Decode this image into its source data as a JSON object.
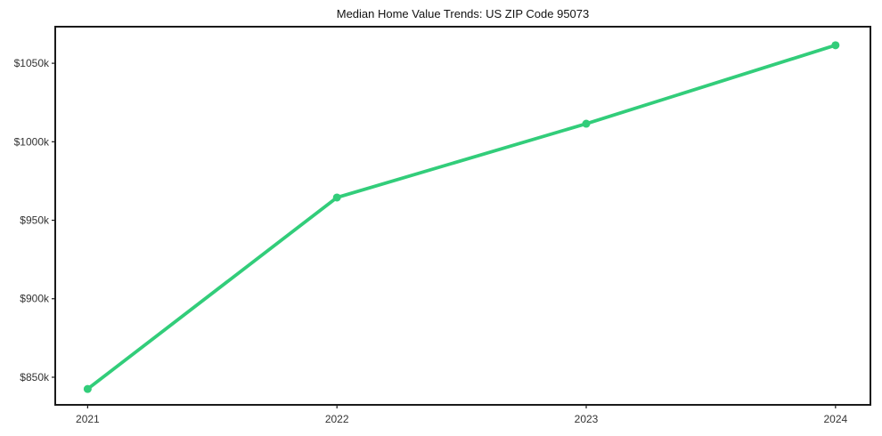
{
  "figure": {
    "background": "#ffffff"
  },
  "chart_data": {
    "type": "line",
    "title": "Median Home Value Trends: US ZIP Code 95073",
    "x": [
      2021,
      2022,
      2023,
      2024
    ],
    "x_tick_labels": [
      "2021",
      "2022",
      "2023",
      "2024"
    ],
    "values": [
      842.5,
      964.5,
      1011.5,
      1061.5
    ],
    "values_unit": "$k",
    "y_ticks": [
      850,
      900,
      950,
      1000,
      1050
    ],
    "y_tick_labels": [
      "$850k",
      "$900k",
      "$950k",
      "$1000k",
      "$1050k"
    ],
    "xlim": [
      2020.87,
      2024.14
    ],
    "ylim": [
      832.4,
      1073.3
    ],
    "grid": false,
    "legend": "none",
    "line_color": "#32cd7a",
    "marker": "circle",
    "axis_color": "#1a1a1a",
    "tick_label_color": "#333333",
    "title_color": "#111111"
  }
}
